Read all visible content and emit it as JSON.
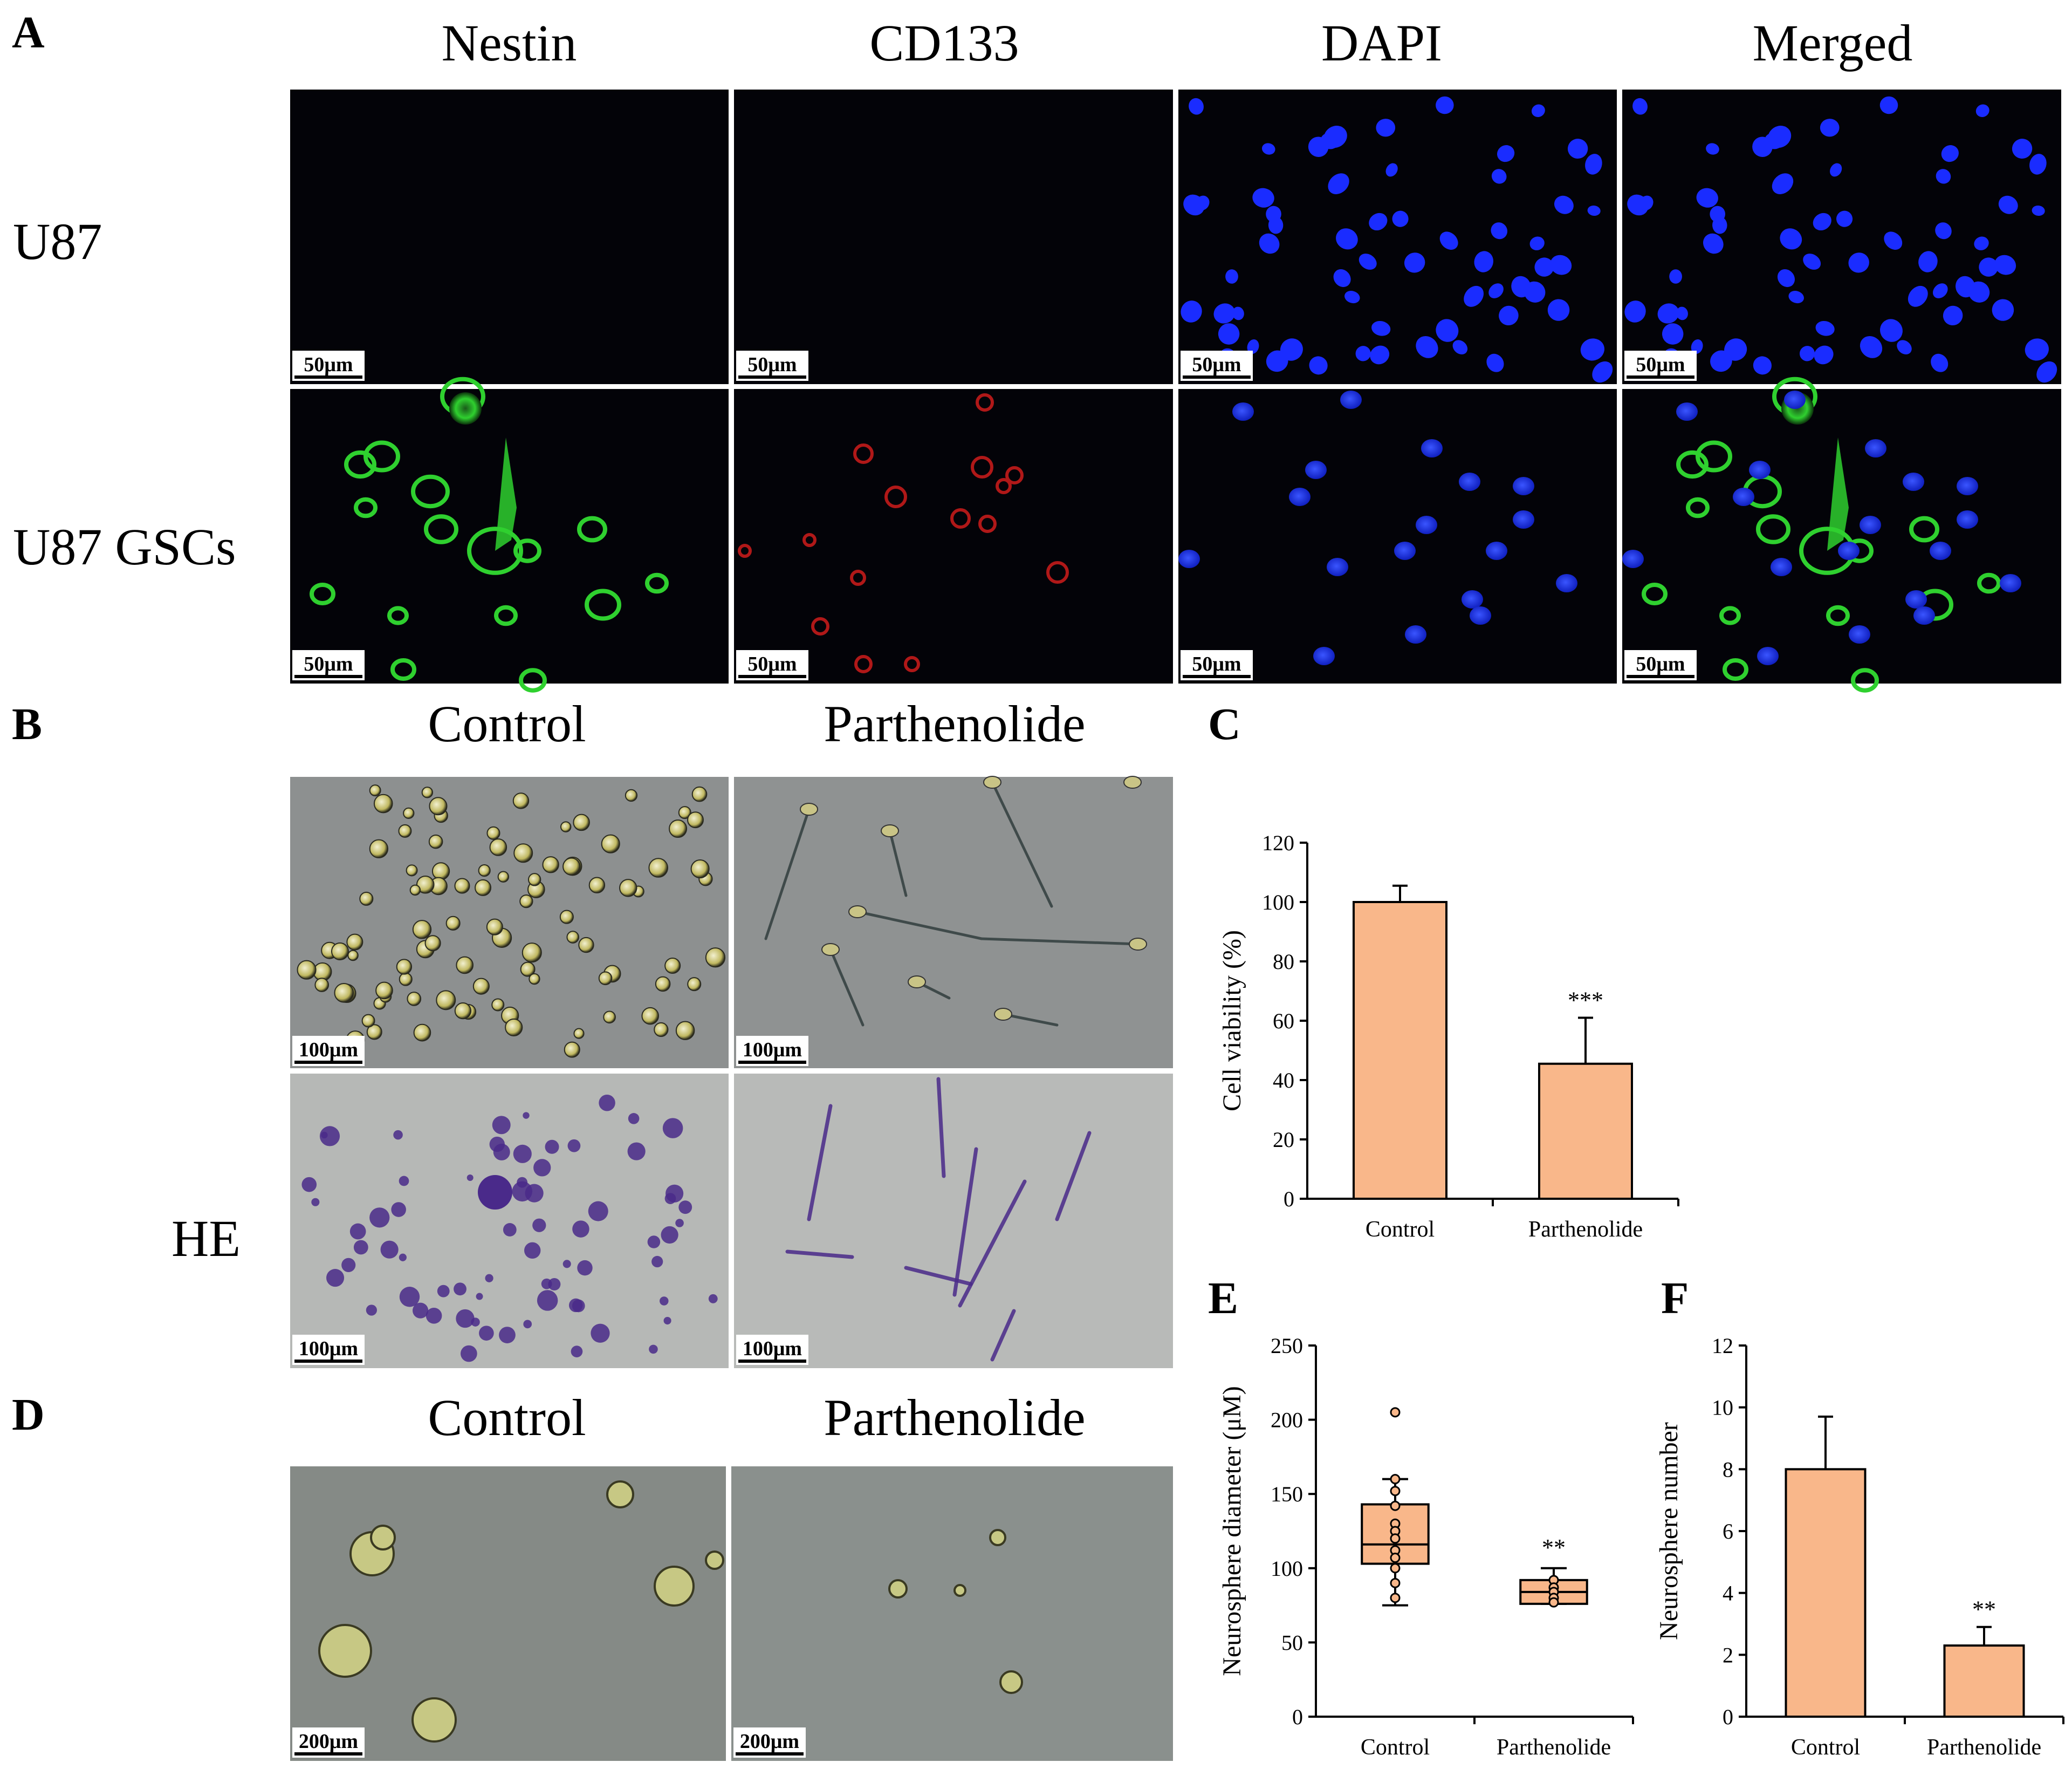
{
  "colors": {
    "bar_fill": "#F9B78A",
    "fluor_background": "#030308",
    "nestin_green": "#2fd02f",
    "cd133_red": "#b01818",
    "dapi_blue": "#1a2cff",
    "phase_gray": "#8d9090",
    "he_gray": "#b6b8b6",
    "he_purple": "#4a2a8a"
  },
  "panel_a": {
    "letter": "A",
    "columns": [
      "Nestin",
      "CD133",
      "DAPI",
      "Merged"
    ],
    "rows": [
      "U87",
      "U87 GSCs"
    ],
    "scale_bar": "50μm"
  },
  "panel_b": {
    "letter": "B",
    "columns": [
      "Control",
      "Parthenolide"
    ],
    "row_label": "HE",
    "scale_bar": "100μm"
  },
  "panel_d": {
    "letter": "D",
    "columns": [
      "Control",
      "Parthenolide"
    ],
    "scale_bar": "200μm"
  },
  "chart_data": [
    {
      "panel": "C",
      "type": "bar",
      "categories": [
        "Control",
        "Parthenolide"
      ],
      "values": [
        100,
        45.5
      ],
      "errors": [
        5.5,
        15.5
      ],
      "annotations": [
        "",
        "***"
      ],
      "ylabel": "Cell viability (%)",
      "ylim": [
        0,
        120
      ],
      "yticks": [
        0,
        20,
        40,
        60,
        80,
        100,
        120
      ]
    },
    {
      "panel": "E",
      "type": "box",
      "categories": [
        "Control",
        "Parthenolide"
      ],
      "boxes": [
        {
          "whisker_low": 75,
          "q1": 103,
          "median": 116,
          "q3": 143,
          "whisker_high": 160,
          "points": [
            205,
            160,
            152,
            142,
            130,
            125,
            120,
            112,
            107,
            100,
            90,
            80
          ]
        },
        {
          "whisker_low": 76,
          "q1": 76,
          "median": 84,
          "q3": 92,
          "whisker_high": 100,
          "points": [
            92,
            87,
            84,
            80,
            77
          ]
        }
      ],
      "annotations": [
        "",
        "**"
      ],
      "ylabel": "Neurosphere diameter (μM)",
      "ylim": [
        0,
        250
      ],
      "yticks": [
        0,
        50,
        100,
        150,
        200,
        250
      ]
    },
    {
      "panel": "F",
      "type": "bar",
      "categories": [
        "Control",
        "Parthenolide"
      ],
      "values": [
        8,
        2.3
      ],
      "errors": [
        1.7,
        0.6
      ],
      "annotations": [
        "",
        "**"
      ],
      "ylabel": "Neurosphere number",
      "ylim": [
        0,
        12
      ],
      "yticks": [
        0,
        2,
        4,
        6,
        8,
        10,
        12
      ]
    }
  ]
}
